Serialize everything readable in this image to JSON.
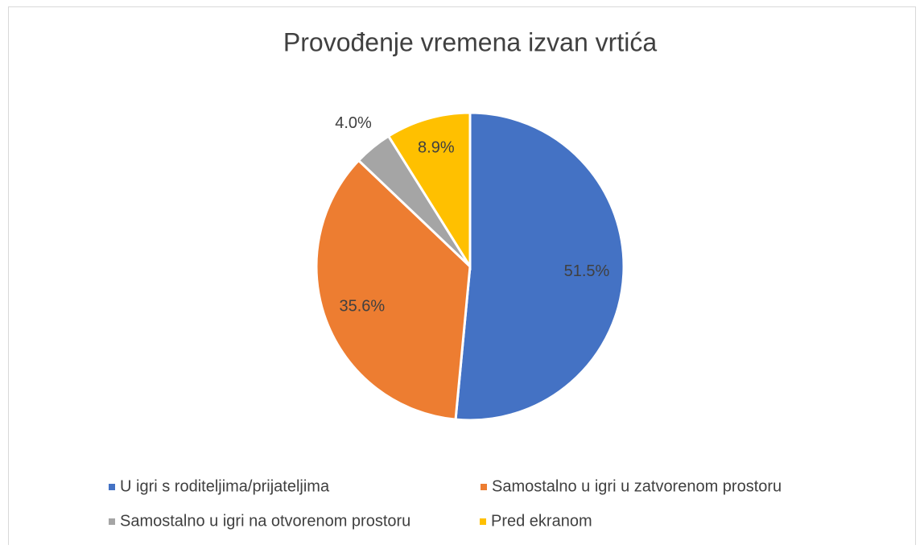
{
  "chart_data": {
    "type": "pie",
    "title": "Provođenje vremena izvan vrtića",
    "categories": [
      "U igri s roditeljima/prijateljima",
      "Samostalno u igri u zatvorenom prostoru",
      "Samostalno u igri na otvorenom prostoru",
      "Pred ekranom"
    ],
    "values": [
      51.5,
      35.6,
      4.0,
      8.9
    ],
    "value_labels": [
      "51.5%",
      "35.6%",
      "4.0%",
      "8.9%"
    ],
    "colors": [
      "#4472c4",
      "#ed7d31",
      "#a5a5a5",
      "#ffc000"
    ],
    "legend": "bottom"
  }
}
